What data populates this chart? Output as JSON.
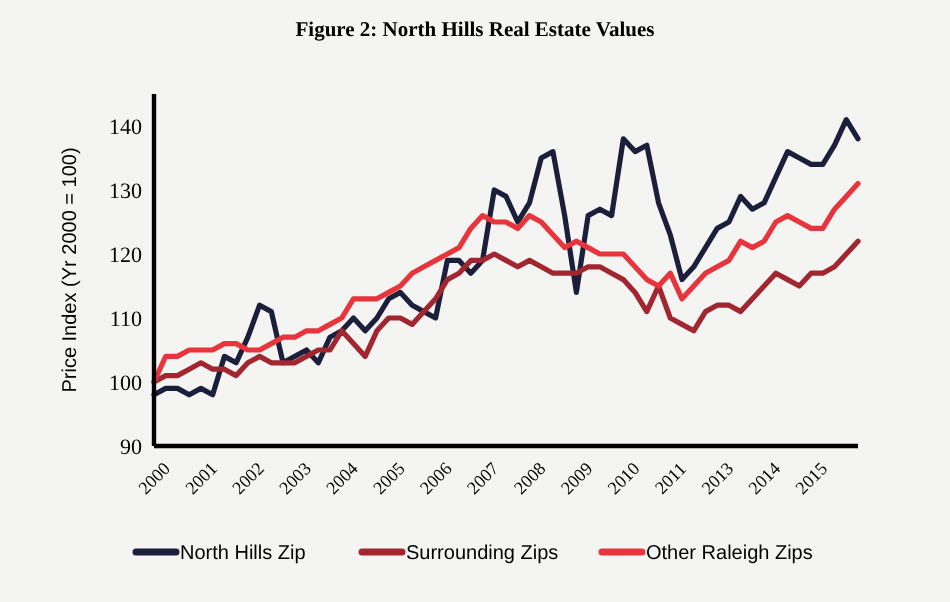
{
  "chart_data": {
    "type": "line",
    "title": "Figure 2: North Hills Real Estate Values",
    "ylabel": "Price Index (Yr 2000 = 100)",
    "categories": [
      "2000",
      null,
      null,
      null,
      "2001",
      null,
      null,
      null,
      "2002",
      null,
      null,
      null,
      "2003",
      null,
      null,
      null,
      "2004",
      null,
      null,
      null,
      "2005",
      null,
      null,
      null,
      "2006",
      null,
      null,
      null,
      "2007",
      null,
      null,
      null,
      "2008",
      null,
      null,
      null,
      "2009",
      null,
      null,
      null,
      "2010",
      null,
      null,
      null,
      "2011",
      null,
      null,
      null,
      "2013",
      null,
      null,
      null,
      "2014",
      null,
      null,
      null,
      "2015",
      null,
      null,
      null,
      null
    ],
    "ylim": [
      90,
      145
    ],
    "yticks": [
      90,
      100,
      110,
      120,
      130,
      140
    ],
    "legend": "bottom",
    "line_style": "solid",
    "series": [
      {
        "name": "North Hills Zip",
        "color": "#1b1f3b",
        "values": [
          98,
          99,
          99,
          98,
          99,
          98,
          104,
          103,
          107,
          112,
          111,
          103,
          104,
          105,
          103,
          107,
          108,
          110,
          108,
          110,
          113,
          114,
          112,
          111,
          110,
          119,
          119,
          117,
          119,
          130,
          129,
          125,
          128,
          135,
          136,
          126,
          114,
          126,
          127,
          126,
          138,
          136,
          137,
          128,
          123,
          116,
          118,
          121,
          124,
          125,
          129,
          127,
          128,
          132,
          136,
          135,
          134,
          134,
          137,
          141,
          138
        ]
      },
      {
        "name": "Surrounding Zips",
        "color": "#a1262f",
        "values": [
          100,
          101,
          101,
          102,
          103,
          102,
          102,
          101,
          103,
          104,
          103,
          103,
          103,
          104,
          105,
          105,
          108,
          106,
          104,
          108,
          110,
          110,
          109,
          111,
          113,
          116,
          117,
          119,
          119,
          120,
          119,
          118,
          119,
          118,
          117,
          117,
          117,
          118,
          118,
          117,
          116,
          114,
          111,
          115,
          110,
          109,
          108,
          111,
          112,
          112,
          111,
          113,
          115,
          117,
          116,
          115,
          117,
          117,
          118,
          120,
          122
        ]
      },
      {
        "name": "Other Raleigh Zips",
        "color": "#e8343c",
        "values": [
          100,
          104,
          104,
          105,
          105,
          105,
          106,
          106,
          105,
          105,
          106,
          107,
          107,
          108,
          108,
          109,
          110,
          113,
          113,
          113,
          114,
          115,
          117,
          118,
          119,
          120,
          121,
          124,
          126,
          125,
          125,
          124,
          126,
          125,
          123,
          121,
          122,
          121,
          120,
          120,
          120,
          118,
          116,
          115,
          117,
          113,
          115,
          117,
          118,
          119,
          122,
          121,
          122,
          125,
          126,
          125,
          124,
          124,
          127,
          129,
          131
        ]
      }
    ]
  }
}
